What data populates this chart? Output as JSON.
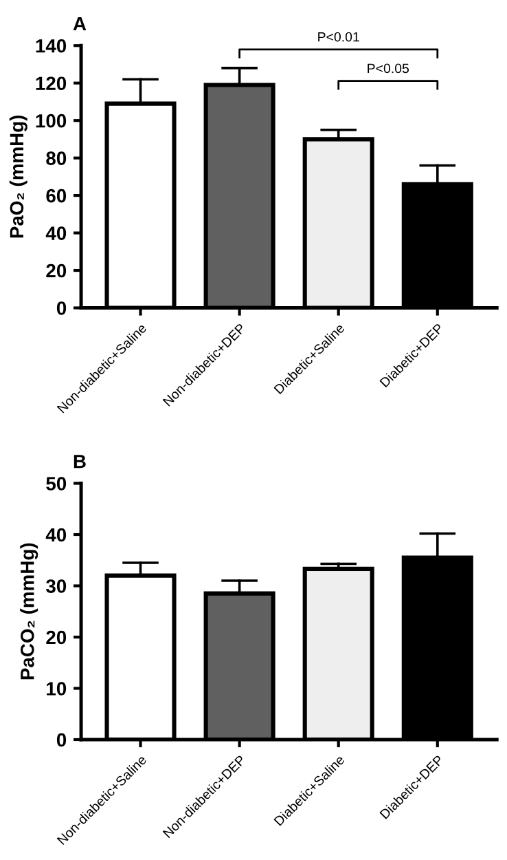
{
  "chart_data": [
    {
      "type": "bar",
      "title": "A",
      "ylabel": "PaO₂ (mmHg)",
      "categories": [
        "Non-diabetic+Saline",
        "Non-diabetic+DEP",
        "Diabetic+Saline",
        "Diabetic+DEP"
      ],
      "values": [
        109,
        119,
        90,
        66
      ],
      "errors": [
        [
          109,
          122
        ],
        [
          119,
          128
        ],
        [
          90,
          95
        ],
        [
          66,
          76
        ]
      ],
      "colors": [
        "#ffffff",
        "#606060",
        "#eeeeee",
        "#000000"
      ],
      "ylim": [
        0,
        140
      ],
      "yticks": [
        0,
        20,
        40,
        60,
        80,
        100,
        120,
        140
      ],
      "grid": false,
      "legend": false,
      "annotations": [
        "P<0.01",
        "P<0.05"
      ]
    },
    {
      "type": "bar",
      "title": "B",
      "ylabel": "PaCO₂ (mmHg)",
      "categories": [
        "Non-diabetic+Saline",
        "Non-diabetic+DEP",
        "Diabetic+Saline",
        "Diabetic+DEP"
      ],
      "values": [
        32,
        28.5,
        33.3,
        35.5
      ],
      "errors": [
        [
          32,
          34.5
        ],
        [
          28.5,
          31
        ],
        [
          33.3,
          34.3
        ],
        [
          35.5,
          40.2
        ]
      ],
      "colors": [
        "#ffffff",
        "#606060",
        "#eeeeee",
        "#000000"
      ],
      "ylim": [
        0,
        50
      ],
      "yticks": [
        0,
        10,
        20,
        30,
        40,
        50
      ],
      "grid": false,
      "legend": false
    }
  ]
}
